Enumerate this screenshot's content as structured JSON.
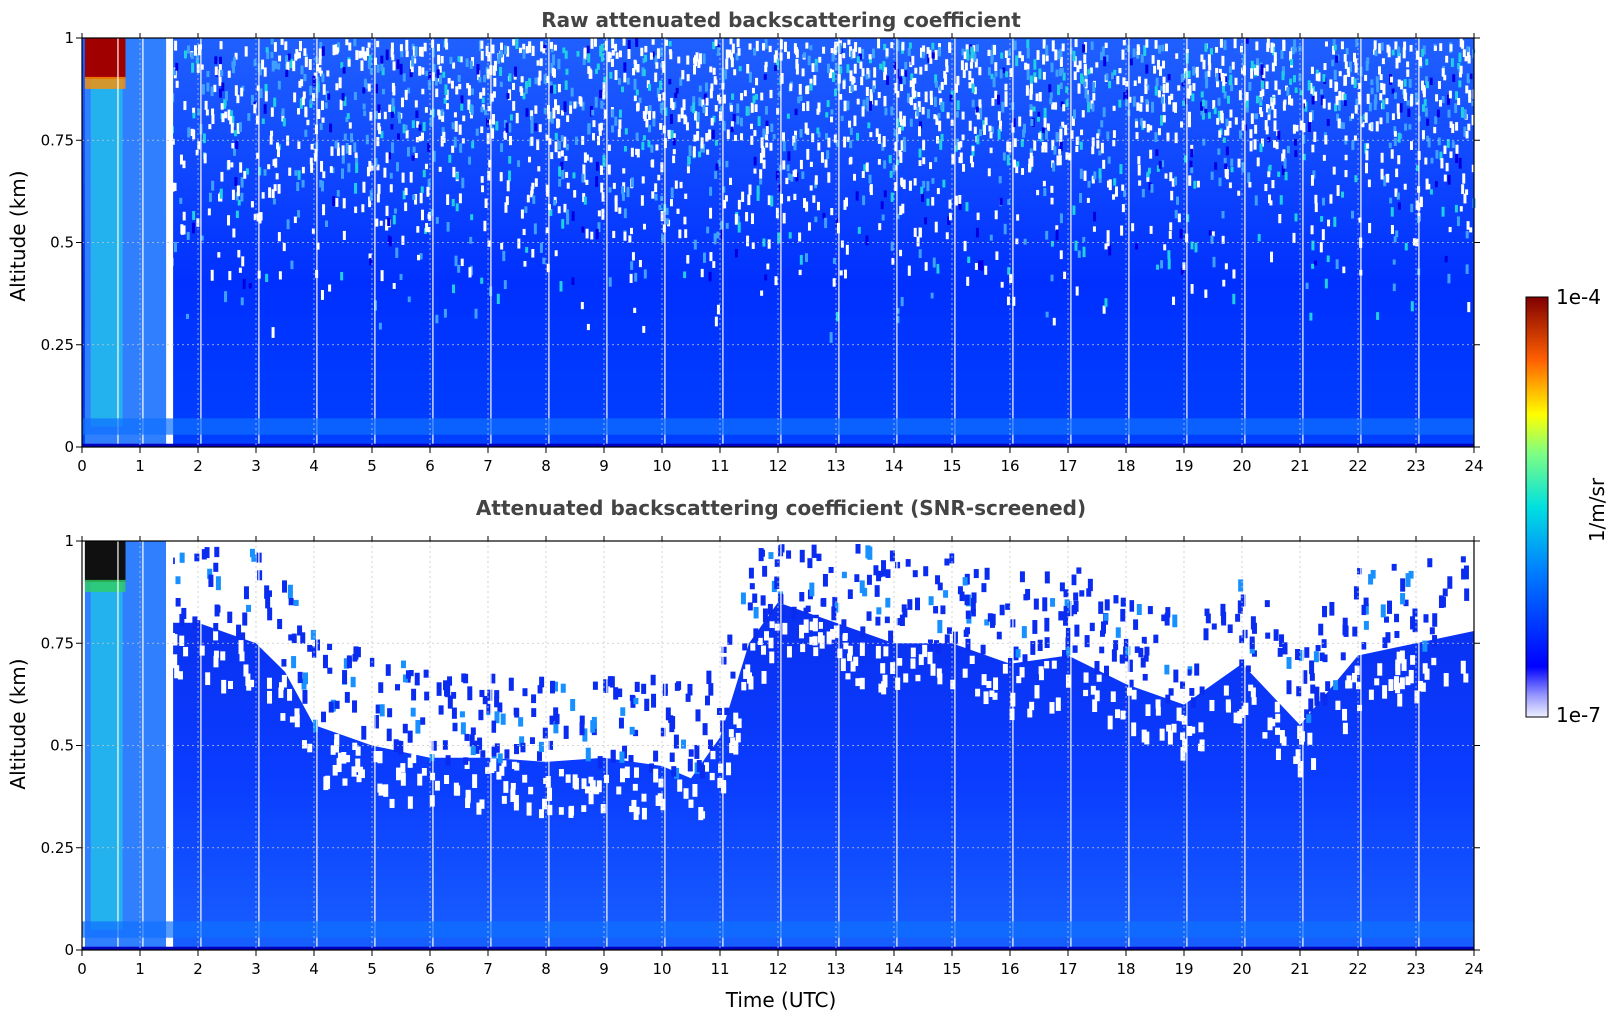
{
  "chart_data": [
    {
      "type": "heatmap",
      "title": "Raw attenuated backscattering coefficient",
      "xlabel": "",
      "ylabel": "Altitude (km)",
      "xlim": [
        0,
        24
      ],
      "ylim": [
        0,
        1
      ],
      "xticks": [
        "0",
        "1",
        "2",
        "3",
        "4",
        "5",
        "6",
        "7",
        "8",
        "9",
        "10",
        "11",
        "12",
        "13",
        "14",
        "15",
        "16",
        "17",
        "18",
        "19",
        "20",
        "21",
        "22",
        "23",
        "24"
      ],
      "yticks": [
        "0",
        "0.25",
        "0.5",
        "0.75",
        "1"
      ],
      "grid": true,
      "colorscale": "jet (log)",
      "features": {
        "high_signal_time_range": [
          0.05,
          0.75
        ],
        "high_signal_altitude_min": 0.9,
        "data_gap_time": 1.45,
        "profile_gaps_hourly": true,
        "noise_dominated_altitude": "above ~0.5 km"
      }
    },
    {
      "type": "heatmap",
      "title": "Attenuated backscattering coefficient (SNR-screened)",
      "xlabel": "Time (UTC)",
      "ylabel": "Altitude (km)",
      "xlim": [
        0,
        24
      ],
      "ylim": [
        0,
        1
      ],
      "xticks": [
        "0",
        "1",
        "2",
        "3",
        "4",
        "5",
        "6",
        "7",
        "8",
        "9",
        "10",
        "11",
        "12",
        "13",
        "14",
        "15",
        "16",
        "17",
        "18",
        "19",
        "20",
        "21",
        "22",
        "23",
        "24"
      ],
      "yticks": [
        "0",
        "0.25",
        "0.5",
        "0.75",
        "1"
      ],
      "grid": true,
      "colorscale": "jet (log)",
      "screened_top_km": {
        "time": [
          1.5,
          2,
          3,
          3.5,
          4,
          5,
          6,
          7,
          8,
          9,
          10,
          10.5,
          11,
          11.5,
          12,
          13,
          14,
          15,
          16,
          17,
          18,
          19,
          20,
          21,
          22,
          23,
          24
        ],
        "top": [
          0.8,
          0.8,
          0.75,
          0.68,
          0.55,
          0.5,
          0.47,
          0.47,
          0.46,
          0.47,
          0.45,
          0.42,
          0.52,
          0.75,
          0.85,
          0.8,
          0.75,
          0.75,
          0.7,
          0.72,
          0.65,
          0.6,
          0.7,
          0.55,
          0.72,
          0.75,
          0.78
        ]
      }
    }
  ],
  "colorbar": {
    "label": "1/m/sr",
    "max_label": "1e-4",
    "min_label": "1e-7",
    "range_log10": [
      -7,
      -4
    ]
  },
  "labels": {
    "title_top": "Raw attenuated backscattering coefficient",
    "title_bottom": "Attenuated backscattering coefficient (SNR-screened)",
    "ylabel_top": "Altitude (km)",
    "ylabel_bottom": "Altitude (km)",
    "xlabel": "Time (UTC)"
  }
}
